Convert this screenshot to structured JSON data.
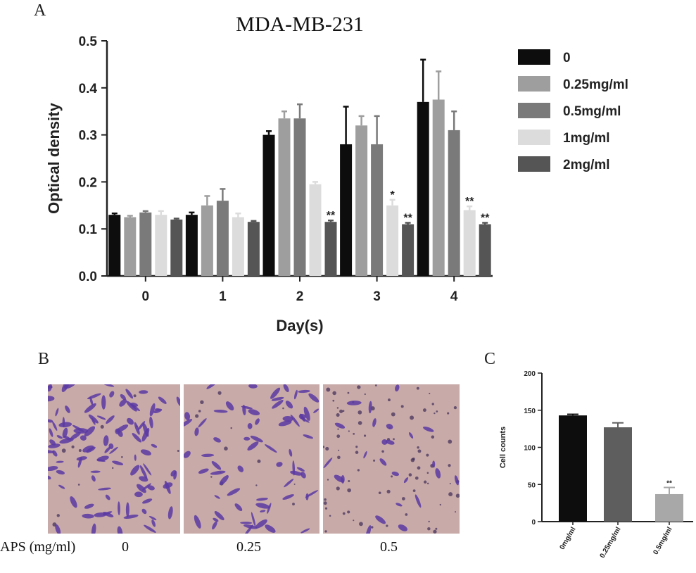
{
  "panel_a": {
    "letter": "A",
    "colors": [
      "#0d0d0d",
      "#9e9e9e",
      "#7a7a7a",
      "#dcdcdc",
      "#555555"
    ]
  },
  "panel_b": {
    "letter": "B",
    "row_label": "APS (mg/ml)",
    "conditions": [
      "0",
      "0.25",
      "0.5"
    ],
    "stain_color": "#5b3aa3",
    "background_color": "#c8aaa9"
  },
  "panel_c": {
    "letter": "C",
    "colors": [
      "#0d0d0d",
      "#5e5e5e",
      "#a8a8a8"
    ]
  },
  "chart_data": [
    {
      "type": "bar",
      "title": "MDA-MB-231",
      "xlabel": "Day(s)",
      "ylabel": "Optical density",
      "categories": [
        "0",
        "1",
        "2",
        "3",
        "4"
      ],
      "ylim": [
        0.0,
        0.5
      ],
      "yticks": [
        "0.0",
        "0.1",
        "0.2",
        "0.3",
        "0.4",
        "0.5"
      ],
      "legend_position": "right",
      "series": [
        {
          "name": "0",
          "values": [
            0.13,
            0.13,
            0.3,
            0.28,
            0.37
          ],
          "errors": [
            0.003,
            0.005,
            0.008,
            0.08,
            0.09
          ],
          "marks": [
            "",
            "",
            "",
            "",
            ""
          ]
        },
        {
          "name": "0.25mg/ml",
          "values": [
            0.125,
            0.15,
            0.335,
            0.32,
            0.375
          ],
          "errors": [
            0.003,
            0.02,
            0.015,
            0.02,
            0.06
          ],
          "marks": [
            "",
            "",
            "",
            "",
            ""
          ]
        },
        {
          "name": "0.5mg/ml",
          "values": [
            0.135,
            0.16,
            0.335,
            0.28,
            0.31
          ],
          "errors": [
            0.003,
            0.025,
            0.03,
            0.06,
            0.04
          ],
          "marks": [
            "",
            "",
            "",
            "",
            ""
          ]
        },
        {
          "name": "1mg/ml",
          "values": [
            0.13,
            0.125,
            0.195,
            0.15,
            0.14
          ],
          "errors": [
            0.008,
            0.008,
            0.005,
            0.012,
            0.008
          ],
          "marks": [
            "",
            "",
            "",
            "*",
            "**"
          ]
        },
        {
          "name": "2mg/ml",
          "values": [
            0.12,
            0.115,
            0.115,
            0.11,
            0.11
          ],
          "errors": [
            0.002,
            0.002,
            0.003,
            0.003,
            0.003
          ],
          "marks": [
            "",
            "",
            "**",
            "**",
            "**"
          ]
        }
      ]
    },
    {
      "type": "bar",
      "ylabel": "Cell counts",
      "categories": [
        "0mg/ml",
        "0.25mg/ml",
        "0.5mg/ml"
      ],
      "values": [
        143,
        127,
        37
      ],
      "errors": [
        1.5,
        6,
        9
      ],
      "marks": [
        "",
        "",
        "**"
      ],
      "ylim": [
        0,
        200
      ],
      "yticks": [
        "0",
        "50",
        "100",
        "150",
        "200"
      ]
    }
  ]
}
